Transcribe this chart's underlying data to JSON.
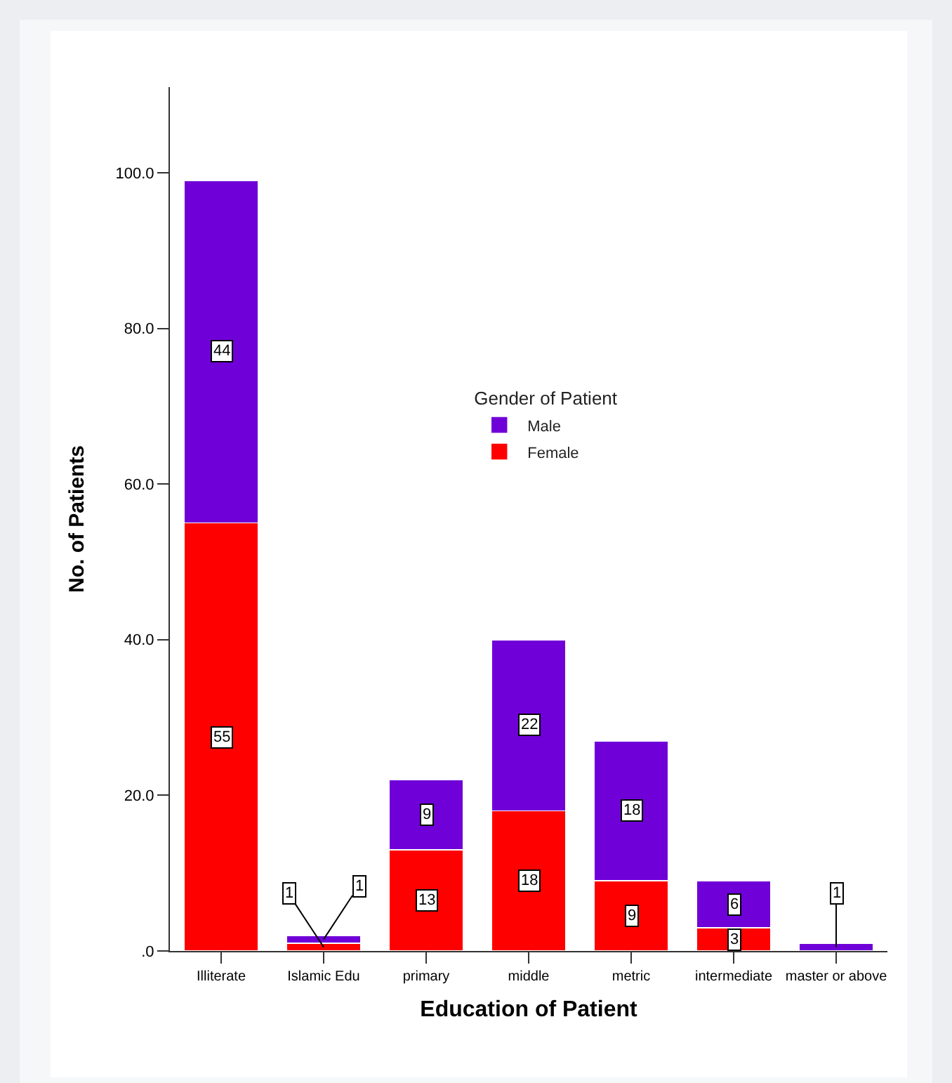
{
  "chart_data": {
    "type": "bar",
    "stacked": true,
    "xlabel": "Education of Patient",
    "ylabel": "No. of Patients",
    "legend_title": "Gender of Patient",
    "legend": "top right",
    "grid": false,
    "categories": [
      "Illiterate",
      "Islamic Edu",
      "primary",
      "middle",
      "metric",
      "intermediate",
      "master or above"
    ],
    "ylim": [
      0,
      111
    ],
    "yticks": [
      {
        "value": 0,
        "label": ".0"
      },
      {
        "value": 20,
        "label": "20.0"
      },
      {
        "value": 40,
        "label": "40.0"
      },
      {
        "value": 60,
        "label": "60.0"
      },
      {
        "value": 80,
        "label": "80.0"
      },
      {
        "value": 100,
        "label": "100.0"
      }
    ],
    "series": [
      {
        "name": "Female",
        "color": "#ff0000",
        "values": [
          55,
          1,
          13,
          18,
          9,
          3,
          0
        ],
        "value_labels": [
          "55",
          "1",
          "13",
          "18",
          "9",
          "3",
          null
        ]
      },
      {
        "name": "Male",
        "color": "#7000d8",
        "values": [
          44,
          1,
          9,
          22,
          18,
          6,
          1
        ],
        "value_labels": [
          "44",
          "1",
          "9",
          "22",
          "18",
          "6",
          "1"
        ]
      }
    ]
  }
}
